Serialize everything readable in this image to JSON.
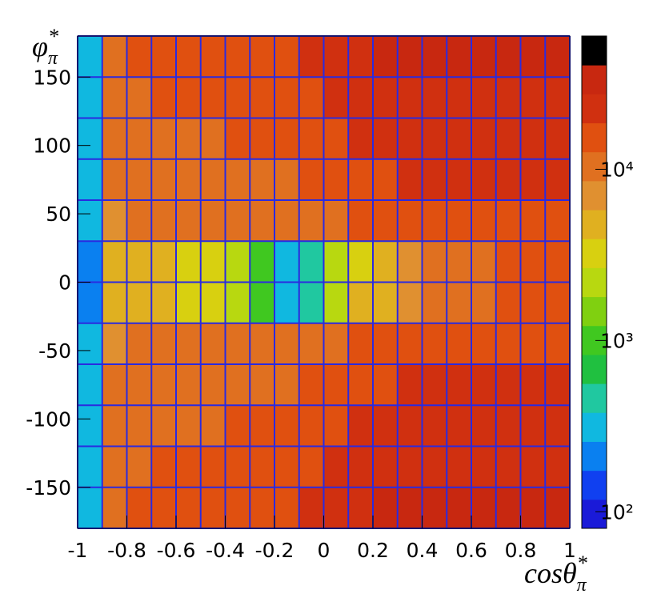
{
  "chart_data": {
    "type": "heatmap",
    "x_label": {
      "main": "cosθ",
      "sub": "π",
      "sup": "*"
    },
    "y_label": {
      "main": "φ",
      "sub": "π",
      "sup": "*"
    },
    "x_bins": [
      -1,
      -0.9,
      -0.8,
      -0.7,
      -0.6,
      -0.5,
      -0.4,
      -0.3,
      -0.2,
      -0.1,
      0,
      0.1,
      0.2,
      0.3,
      0.4,
      0.5,
      0.6,
      0.7,
      0.8,
      0.9,
      1
    ],
    "y_bins": [
      -180,
      -150,
      -120,
      -90,
      -60,
      -30,
      0,
      30,
      60,
      90,
      120,
      150,
      180
    ],
    "z": [
      [
        300,
        14000,
        16000,
        17000,
        17000,
        18000,
        18000,
        19000,
        20000,
        22000,
        26000,
        32000,
        35000,
        38000,
        40000,
        42000,
        45000,
        45000,
        42000,
        38000
      ],
      [
        250,
        12000,
        14000,
        15000,
        15000,
        16000,
        16000,
        17000,
        17000,
        19000,
        22000,
        26000,
        28000,
        30000,
        30000,
        31000,
        32000,
        31000,
        30000,
        28000
      ],
      [
        250,
        11000,
        13000,
        14000,
        14000,
        14000,
        15000,
        15000,
        15000,
        17000,
        19000,
        22000,
        24000,
        25000,
        26000,
        26000,
        27000,
        26000,
        25000,
        24000
      ],
      [
        250,
        10000,
        12000,
        13000,
        13000,
        13000,
        14000,
        14000,
        14000,
        15000,
        17000,
        20000,
        21000,
        22000,
        23000,
        23000,
        24000,
        23000,
        23000,
        22000
      ],
      [
        250,
        9000,
        10000,
        11000,
        11000,
        11000,
        11000,
        11000,
        11000,
        12000,
        14000,
        16000,
        17000,
        18000,
        19000,
        19000,
        20000,
        20000,
        19000,
        19000
      ],
      [
        200,
        5000,
        5000,
        5000,
        4000,
        3000,
        2000,
        800,
        300,
        400,
        2500,
        5000,
        6000,
        8000,
        10000,
        12000,
        14000,
        15000,
        15000,
        15000
      ],
      [
        200,
        5000,
        5000,
        5000,
        4000,
        3000,
        2000,
        900,
        300,
        400,
        2500,
        4000,
        5000,
        7000,
        10000,
        12000,
        14000,
        15000,
        15000,
        15000
      ],
      [
        250,
        9000,
        10000,
        11000,
        11000,
        11000,
        11000,
        11000,
        11000,
        12000,
        14000,
        16000,
        17000,
        18000,
        19000,
        19000,
        20000,
        20000,
        19000,
        19000
      ],
      [
        250,
        10000,
        12000,
        13000,
        13000,
        13000,
        14000,
        14000,
        14000,
        15000,
        17000,
        20000,
        21000,
        22000,
        23000,
        23000,
        24000,
        23000,
        23000,
        22000
      ],
      [
        250,
        11000,
        13000,
        14000,
        14000,
        14000,
        15000,
        15000,
        15000,
        17000,
        19000,
        22000,
        24000,
        25000,
        26000,
        26000,
        27000,
        26000,
        25000,
        24000
      ],
      [
        250,
        12000,
        14000,
        15000,
        15000,
        16000,
        16000,
        17000,
        17000,
        19000,
        22000,
        26000,
        28000,
        30000,
        30000,
        31000,
        32000,
        31000,
        30000,
        28000
      ],
      [
        300,
        14000,
        16000,
        17000,
        17000,
        18000,
        18000,
        19000,
        20000,
        22000,
        26000,
        32000,
        35000,
        38000,
        40000,
        42000,
        45000,
        45000,
        42000,
        38000
      ]
    ],
    "xlim": [
      -1,
      1
    ],
    "xticks": [
      -1,
      -0.8,
      -0.6,
      -0.4,
      -0.2,
      0,
      0.2,
      0.4,
      0.6,
      0.8,
      1
    ],
    "ylim": [
      -180,
      180
    ],
    "yticks": [
      -150,
      -100,
      -50,
      0,
      50,
      100,
      150
    ],
    "zlim": [
      80,
      60000
    ],
    "zticks": [
      {
        "value": 100,
        "label": "10²"
      },
      {
        "value": 1000,
        "label": "10³"
      },
      {
        "value": 10000,
        "label": "10⁴"
      }
    ],
    "log_z": true,
    "grid_color": "#2a2ae0",
    "palette": [
      "#1a1ad8",
      "#1040f0",
      "#0a80f0",
      "#10b8e0",
      "#20c8a0",
      "#20c040",
      "#40c820",
      "#80d010",
      "#b8d810",
      "#d8d010",
      "#e0b020",
      "#e09030",
      "#e07020",
      "#e05010",
      "#d03010",
      "#c82810",
      "#000000"
    ]
  }
}
